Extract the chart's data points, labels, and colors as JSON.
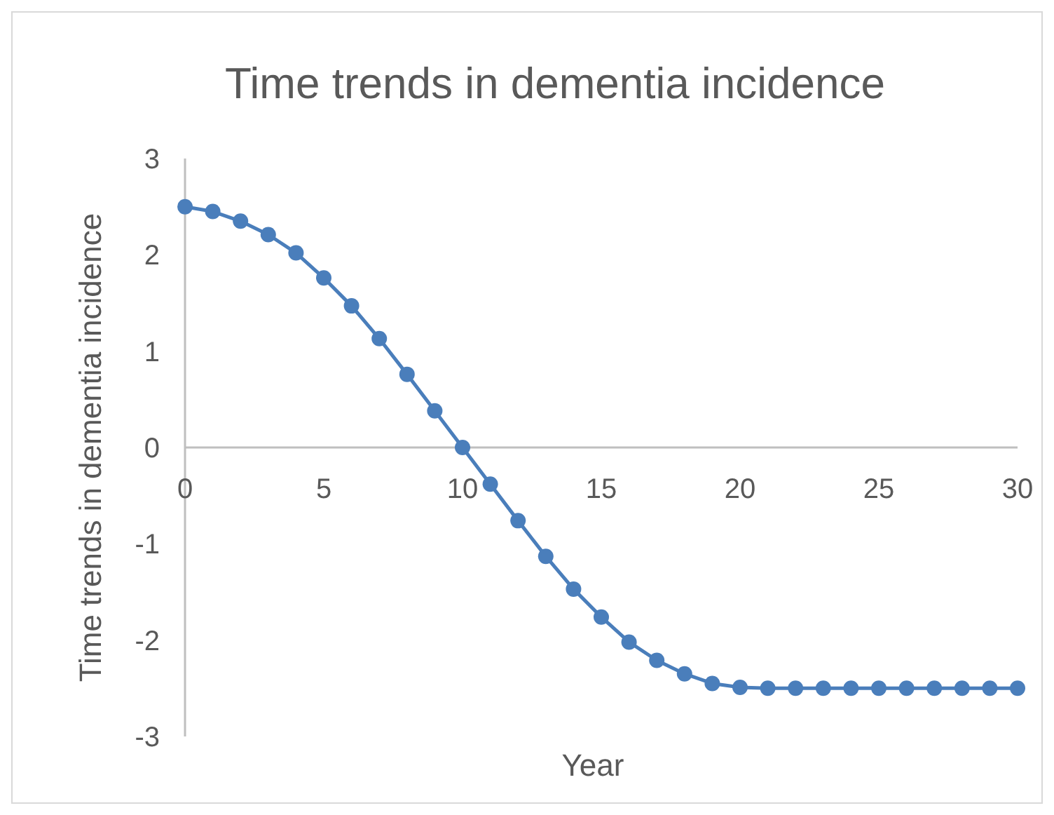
{
  "chart_data": {
    "type": "line",
    "title": "Time trends in dementia incidence",
    "xlabel": "Year",
    "ylabel": "Time trends in dementia incidence",
    "x": [
      0,
      1,
      2,
      3,
      4,
      5,
      6,
      7,
      8,
      9,
      10,
      11,
      12,
      13,
      14,
      15,
      16,
      17,
      18,
      19,
      20,
      21,
      22,
      23,
      24,
      25,
      26,
      27,
      28,
      29,
      30
    ],
    "series": [
      {
        "color": "#4a7ebb",
        "values": [
          2.5,
          2.45,
          2.35,
          2.21,
          2.02,
          1.76,
          1.47,
          1.13,
          0.76,
          0.38,
          0,
          -0.38,
          -0.76,
          -1.13,
          -1.47,
          -1.76,
          -2.02,
          -2.21,
          -2.35,
          -2.45,
          -2.49,
          -2.5,
          -2.5,
          -2.5,
          -2.5,
          -2.5,
          -2.5,
          -2.5,
          -2.5,
          -2.5,
          -2.5
        ]
      }
    ],
    "xlim": [
      0,
      30
    ],
    "xticks": [
      0,
      5,
      10,
      15,
      20,
      25,
      30
    ],
    "ylim": [
      -3,
      3
    ],
    "yticks": [
      -3,
      -2,
      -1,
      0,
      1,
      2,
      3
    ],
    "marker": "circle",
    "line_style": "solid",
    "grid": false
  }
}
